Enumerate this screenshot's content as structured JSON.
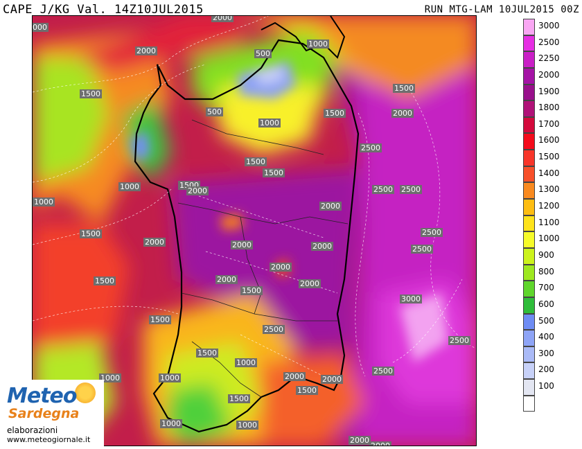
{
  "header": {
    "title_left": "CAPE J/KG Val. 14Z10JUL2015",
    "title_right": "RUN MTG-LAM 10JUL2015 00Z"
  },
  "legend": [
    {
      "label": "3000",
      "color": "#f9a6f3"
    },
    {
      "label": "2500",
      "color": "#e62ee3"
    },
    {
      "label": "2250",
      "color": "#c91fc6"
    },
    {
      "label": "2000",
      "color": "#a513a6"
    },
    {
      "label": "1900",
      "color": "#99108c"
    },
    {
      "label": "1800",
      "color": "#b01278"
    },
    {
      "label": "1700",
      "color": "#d40a3c"
    },
    {
      "label": "1600",
      "color": "#f40c1c"
    },
    {
      "label": "1500",
      "color": "#f8362a"
    },
    {
      "label": "1400",
      "color": "#f8502a"
    },
    {
      "label": "1300",
      "color": "#f98a1f"
    },
    {
      "label": "1200",
      "color": "#fdbd12"
    },
    {
      "label": "1100",
      "color": "#fee31b"
    },
    {
      "label": "1000",
      "color": "#f6fb2a"
    },
    {
      "label": "900",
      "color": "#ccf31c"
    },
    {
      "label": "800",
      "color": "#9ee820"
    },
    {
      "label": "700",
      "color": "#5fd62c"
    },
    {
      "label": "600",
      "color": "#2fbd3a"
    },
    {
      "label": "500",
      "color": "#6e8cf4"
    },
    {
      "label": "400",
      "color": "#8ea4f6"
    },
    {
      "label": "300",
      "color": "#aabaf7"
    },
    {
      "label": "200",
      "color": "#c7d1f8"
    },
    {
      "label": "100",
      "color": "#e3e6f2"
    },
    {
      "label": "",
      "color": "#ffffff"
    }
  ],
  "contour_labels": [
    {
      "text": "2000",
      "name": "contour-2000"
    },
    {
      "text": "000",
      "name": "contour-000"
    },
    {
      "text": "2000",
      "name": "contour-2000"
    },
    {
      "text": "1000",
      "name": "contour-1000"
    },
    {
      "text": "500",
      "name": "contour-500"
    },
    {
      "text": "1500",
      "name": "contour-1500"
    },
    {
      "text": "1500",
      "name": "contour-1500"
    },
    {
      "text": "500",
      "name": "contour-500"
    },
    {
      "text": "1000",
      "name": "contour-1000"
    },
    {
      "text": "1500",
      "name": "contour-1500"
    },
    {
      "text": "2000",
      "name": "contour-2000"
    },
    {
      "text": "1500",
      "name": "contour-1500"
    },
    {
      "text": "2500",
      "name": "contour-2500"
    },
    {
      "text": "1500",
      "name": "contour-1500"
    },
    {
      "text": "1000",
      "name": "contour-1000"
    },
    {
      "text": "1500",
      "name": "contour-1500"
    },
    {
      "text": "2000",
      "name": "contour-2000"
    },
    {
      "text": "2500",
      "name": "contour-2500"
    },
    {
      "text": "2500",
      "name": "contour-2500"
    },
    {
      "text": "1000",
      "name": "contour-1000"
    },
    {
      "text": "2000",
      "name": "contour-2000"
    },
    {
      "text": "1500",
      "name": "contour-1500"
    },
    {
      "text": "2000",
      "name": "contour-2000"
    },
    {
      "text": "2000",
      "name": "contour-2000"
    },
    {
      "text": "2500",
      "name": "contour-2500"
    },
    {
      "text": "2000",
      "name": "contour-2000"
    },
    {
      "text": "2500",
      "name": "contour-2500"
    },
    {
      "text": "1500",
      "name": "contour-1500"
    },
    {
      "text": "2000",
      "name": "contour-2000"
    },
    {
      "text": "2000",
      "name": "contour-2000"
    },
    {
      "text": "2000",
      "name": "contour-2000"
    },
    {
      "text": "1500",
      "name": "contour-1500"
    },
    {
      "text": "3000",
      "name": "contour-3000"
    },
    {
      "text": "1500",
      "name": "contour-1500"
    },
    {
      "text": "2500",
      "name": "contour-2500"
    },
    {
      "text": "2500",
      "name": "contour-2500"
    },
    {
      "text": "1500",
      "name": "contour-1500"
    },
    {
      "text": "1000",
      "name": "contour-1000"
    },
    {
      "text": "2500",
      "name": "contour-2500"
    },
    {
      "text": "1000",
      "name": "contour-1000"
    },
    {
      "text": "1000",
      "name": "contour-1000"
    },
    {
      "text": "2000",
      "name": "contour-2000"
    },
    {
      "text": "2000",
      "name": "contour-2000"
    },
    {
      "text": "1500",
      "name": "contour-1500"
    },
    {
      "text": "1500",
      "name": "contour-1500"
    },
    {
      "text": "1000",
      "name": "contour-1000"
    },
    {
      "text": "1000",
      "name": "contour-1000"
    },
    {
      "text": "2000",
      "name": "contour-2000"
    },
    {
      "text": "2000",
      "name": "contour-2000"
    }
  ],
  "logo": {
    "meteo": "Meteo",
    "sardegna": "Sardegna",
    "elaborazioni": "elaborazioni",
    "website": "www.meteogiornale.it"
  }
}
